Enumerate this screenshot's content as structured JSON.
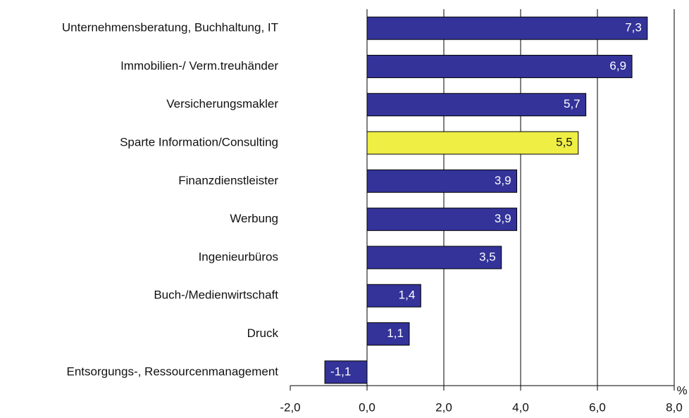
{
  "chart_data": {
    "type": "bar",
    "orientation": "horizontal",
    "categories": [
      "Unternehmensberatung, Buchhaltung, IT",
      "Immobilien-/ Verm.treuhänder",
      "Versicherungsmakler",
      "Sparte Information/Consulting",
      "Finanzdienstleister",
      "Werbung",
      "Ingenieurbüros",
      "Buch-/Medienwirtschaft",
      "Druck",
      "Entsorgungs-, Ressourcenmanagement"
    ],
    "values": [
      7.3,
      6.9,
      5.7,
      5.5,
      3.9,
      3.9,
      3.5,
      1.4,
      1.1,
      -1.1
    ],
    "value_labels": [
      "7,3",
      "6,9",
      "5,7",
      "5,5",
      "3,9",
      "3,9",
      "3,5",
      "1,4",
      "1,1",
      "-1,1"
    ],
    "colors": [
      "#333399",
      "#333399",
      "#333399",
      "#eeee44",
      "#333399",
      "#333399",
      "#333399",
      "#333399",
      "#333399",
      "#333399"
    ],
    "xlim": [
      -2,
      8
    ],
    "xticks": [
      {
        "value": -2,
        "label": "-2,0"
      },
      {
        "value": 0,
        "label": "0,0"
      },
      {
        "value": 2,
        "label": "2,0"
      },
      {
        "value": 4,
        "label": "4,0"
      },
      {
        "value": 6,
        "label": "6,0"
      },
      {
        "value": 8,
        "label": "8,0"
      }
    ],
    "x_unit": "%",
    "grid": true
  }
}
